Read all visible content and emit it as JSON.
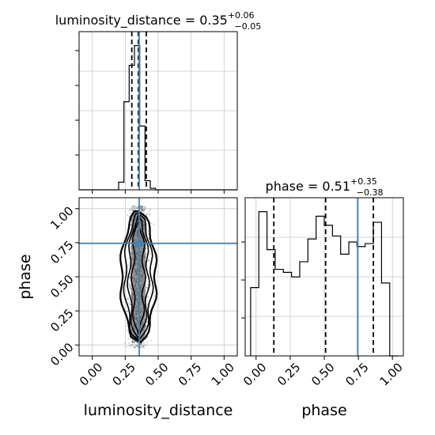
{
  "chart_data": [
    {
      "type": "histogram",
      "panel": "luminosity_distance marginal",
      "title": {
        "param": "luminosity_distance",
        "median": "0.35",
        "upper": "+0.06",
        "lower": "−0.05"
      },
      "xlim": [
        -0.1,
        1.1
      ],
      "bin_edges": [
        0.2,
        0.24,
        0.28,
        0.32,
        0.36,
        0.4,
        0.44,
        0.48
      ],
      "counts": [
        0.05,
        0.58,
        0.82,
        0.95,
        0.42,
        0.06,
        0.01
      ],
      "quantile_lines": [
        0.3,
        0.35,
        0.41
      ],
      "truth": 0.356,
      "grid": true
    },
    {
      "type": "histogram",
      "panel": "phase marginal",
      "title": {
        "param": "phase",
        "median": "0.51",
        "upper": "+0.35",
        "lower": "−0.38"
      },
      "xlim": [
        -0.08,
        1.08
      ],
      "xticks": [
        "0.00",
        "0.25",
        "0.50",
        "0.75",
        "1.00"
      ],
      "xticks_values": [
        0,
        0.25,
        0.5,
        0.75,
        1.0
      ],
      "xlabel": "phase",
      "bin_edges": [
        -0.04,
        0.02,
        0.08,
        0.14,
        0.2,
        0.26,
        0.32,
        0.38,
        0.44,
        0.5,
        0.56,
        0.62,
        0.68,
        0.74,
        0.8,
        0.86,
        0.92,
        0.98,
        1.04
      ],
      "counts": [
        0.45,
        0.95,
        0.7,
        0.57,
        0.55,
        0.52,
        0.62,
        0.77,
        0.92,
        0.86,
        0.79,
        0.67,
        0.75,
        0.72,
        0.74,
        0.88,
        0.48,
        0.0
      ],
      "quantile_lines": [
        0.13,
        0.51,
        0.86
      ],
      "truth": 0.745,
      "grid": true
    },
    {
      "type": "scatter",
      "panel": "2D posterior (luminosity_distance vs phase)",
      "xlim": [
        -0.1,
        1.1
      ],
      "ylim": [
        -0.08,
        1.08
      ],
      "xticks": [
        "0.00",
        "0.25",
        "0.50",
        "0.75",
        "1.00"
      ],
      "xticks_values": [
        0,
        0.25,
        0.5,
        0.75,
        1.0
      ],
      "yticks": [
        "0.00",
        "0.25",
        "0.50",
        "0.75",
        "1.00"
      ],
      "yticks_values": [
        0,
        0.25,
        0.5,
        0.75,
        1.0
      ],
      "xlabel": "luminosity_distance",
      "ylabel": "phase",
      "x_range": [
        0.24,
        0.48
      ],
      "y_range": [
        -0.02,
        1.02
      ],
      "x_center": 0.35,
      "truth_x": 0.356,
      "truth_y": 0.745,
      "contour_levels": 4,
      "grid": true
    }
  ],
  "colors": {
    "truth": "#4682b4",
    "grid": "#c8c8c8",
    "hist": "#000000",
    "samples": "#555555"
  }
}
